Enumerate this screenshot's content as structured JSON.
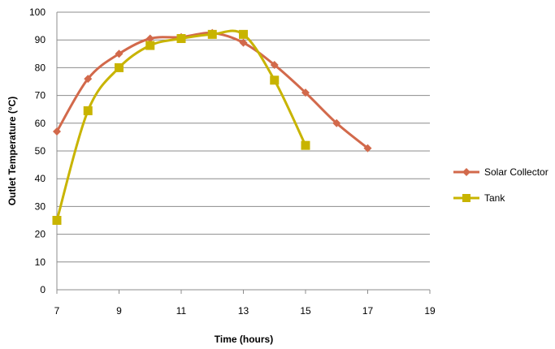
{
  "chart_data": {
    "type": "line",
    "xlabel": "Time (hours)",
    "ylabel": "Outlet Temperature (°C)",
    "xlim": [
      7,
      19
    ],
    "ylim": [
      0,
      100
    ],
    "x_ticks": [
      7,
      9,
      11,
      13,
      15,
      17,
      19
    ],
    "y_ticks": [
      0,
      10,
      20,
      30,
      40,
      50,
      60,
      70,
      80,
      90,
      100
    ],
    "grid": "horizontal",
    "legend_position": "right",
    "series": [
      {
        "name": "Solar Collector",
        "color": "#D2694B",
        "marker": "diamond",
        "x": [
          7,
          8,
          9,
          10,
          11,
          12,
          13,
          14,
          15,
          16,
          17
        ],
        "y": [
          57,
          76,
          85,
          90.5,
          91,
          92.5,
          89,
          81,
          71,
          60,
          51
        ]
      },
      {
        "name": "Tank",
        "color": "#C8B400",
        "marker": "square",
        "x": [
          7,
          8,
          9,
          10,
          11,
          12,
          13,
          14,
          15
        ],
        "y": [
          25,
          64.5,
          80,
          88,
          90.5,
          92,
          92,
          75.5,
          52
        ]
      }
    ]
  }
}
